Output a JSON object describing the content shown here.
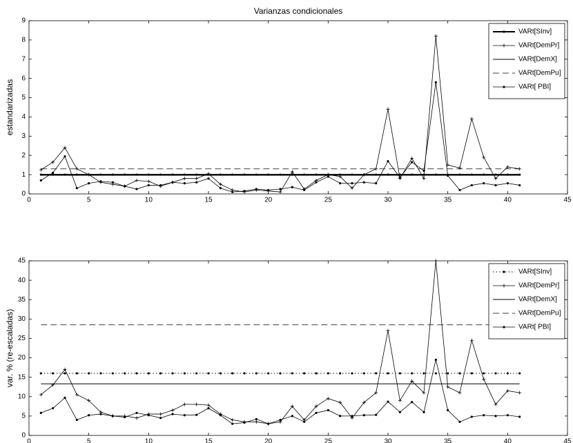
{
  "chart_data": [
    {
      "type": "line",
      "title": "Varianzas condicionales",
      "ylabel": "estandarizadas",
      "x": [
        1,
        2,
        3,
        4,
        5,
        6,
        7,
        8,
        9,
        10,
        11,
        12,
        13,
        14,
        15,
        16,
        17,
        18,
        19,
        20,
        21,
        22,
        23,
        24,
        25,
        26,
        27,
        28,
        29,
        30,
        31,
        32,
        33,
        34,
        35,
        36,
        37,
        38,
        39,
        40,
        41
      ],
      "xlim": [
        0,
        45
      ],
      "xticks": [
        0,
        5,
        10,
        15,
        20,
        25,
        30,
        35,
        40,
        45
      ],
      "ylim": [
        0,
        9
      ],
      "yticks": [
        0,
        1,
        2,
        3,
        4,
        5,
        6,
        7,
        8,
        9
      ],
      "legend": "upper right",
      "series": [
        {
          "name": "VARt[SInv]",
          "color": "#000000",
          "line": "solid",
          "marker": "dot",
          "width": 2,
          "values": [
            1,
            1,
            1,
            1,
            1,
            1,
            1,
            1,
            1,
            1,
            1,
            1,
            1,
            1,
            1,
            1,
            1,
            1,
            1,
            1,
            1,
            1,
            1,
            1,
            1,
            1,
            1,
            1,
            1,
            1,
            1,
            1,
            1,
            1,
            1,
            1,
            1,
            1,
            1,
            1,
            1
          ]
        },
        {
          "name": "VARt[DemPr]",
          "color": "#000000",
          "line": "solid",
          "marker": "plus",
          "width": 0.8,
          "values": [
            1.25,
            1.65,
            2.4,
            1.3,
            1.0,
            0.6,
            0.5,
            0.4,
            0.7,
            0.65,
            0.4,
            0.6,
            0.8,
            0.8,
            1.05,
            0.5,
            0.2,
            0.1,
            0.2,
            0.15,
            0.1,
            1.15,
            0.25,
            0.7,
            1.0,
            0.9,
            0.3,
            1.0,
            1.3,
            4.4,
            0.8,
            1.85,
            0.8,
            8.2,
            1.5,
            1.35,
            3.9,
            1.9,
            0.8,
            1.4,
            1.3
          ]
        },
        {
          "name": "VARt[DemX]",
          "color": "#000000",
          "line": "solid",
          "marker": "none",
          "width": 1,
          "values": [
            0.97,
            0.97,
            0.97,
            0.97,
            0.97,
            0.97,
            0.97,
            0.97,
            0.97,
            0.97,
            0.97,
            0.97,
            0.97,
            0.97,
            0.97,
            0.97,
            0.97,
            0.97,
            0.97,
            0.97,
            0.97,
            0.97,
            0.97,
            0.97,
            0.97,
            0.97,
            0.97,
            0.97,
            0.97,
            0.97,
            0.97,
            0.97,
            0.97,
            0.97,
            0.97,
            0.97,
            0.97,
            0.97,
            0.97,
            0.97,
            0.97
          ]
        },
        {
          "name": "VARt[DemPu]",
          "color": "#000000",
          "line": "dashed",
          "marker": "none",
          "width": 0.8,
          "values": [
            1.3,
            1.3,
            1.3,
            1.3,
            1.3,
            1.3,
            1.3,
            1.3,
            1.3,
            1.3,
            1.3,
            1.3,
            1.3,
            1.3,
            1.3,
            1.3,
            1.3,
            1.3,
            1.3,
            1.3,
            1.3,
            1.3,
            1.3,
            1.3,
            1.3,
            1.3,
            1.3,
            1.3,
            1.3,
            1.3,
            1.3,
            1.3,
            1.3,
            1.3,
            1.3,
            1.3,
            1.3,
            1.3,
            1.3,
            1.3,
            1.3
          ]
        },
        {
          "name": "VARt[ PBI]",
          "color": "#000000",
          "line": "solid",
          "marker": "dot",
          "width": 0.8,
          "values": [
            0.7,
            1.1,
            1.95,
            0.3,
            0.55,
            0.65,
            0.6,
            0.4,
            0.25,
            0.45,
            0.45,
            0.6,
            0.55,
            0.6,
            0.8,
            0.3,
            0.1,
            0.15,
            0.25,
            0.2,
            0.25,
            0.35,
            0.2,
            0.6,
            0.9,
            0.55,
            0.55,
            0.6,
            0.55,
            1.7,
            0.85,
            1.65,
            1.2,
            5.8,
            0.95,
            0.2,
            0.45,
            0.55,
            0.45,
            0.55,
            0.45
          ]
        }
      ]
    },
    {
      "type": "line",
      "ylabel": "var. % (re-escaladas)",
      "x": [
        1,
        2,
        3,
        4,
        5,
        6,
        7,
        8,
        9,
        10,
        11,
        12,
        13,
        14,
        15,
        16,
        17,
        18,
        19,
        20,
        21,
        22,
        23,
        24,
        25,
        26,
        27,
        28,
        29,
        30,
        31,
        32,
        33,
        34,
        35,
        36,
        37,
        38,
        39,
        40,
        41
      ],
      "xlim": [
        0,
        45
      ],
      "xticks": [
        0,
        5,
        10,
        15,
        20,
        25,
        30,
        35,
        40,
        45
      ],
      "ylim": [
        0,
        45
      ],
      "yticks": [
        0,
        5,
        10,
        15,
        20,
        25,
        30,
        35,
        40,
        45
      ],
      "legend": "upper right",
      "series": [
        {
          "name": "VARt[SInv]",
          "color": "#000000",
          "line": "dotted",
          "marker": "dot",
          "width": 1,
          "values": [
            16,
            16,
            16,
            16,
            16,
            16,
            16,
            16,
            16,
            16,
            16,
            16,
            16,
            16,
            16,
            16,
            16,
            16,
            16,
            16,
            16,
            16,
            16,
            16,
            16,
            16,
            16,
            16,
            16,
            16,
            16,
            16,
            16,
            16,
            16,
            16,
            16,
            16,
            16,
            16,
            16
          ]
        },
        {
          "name": "VARt[DemPr]",
          "color": "#000000",
          "line": "solid",
          "marker": "plus",
          "width": 0.8,
          "values": [
            10.5,
            13,
            17,
            10.5,
            9,
            6,
            5,
            5,
            4.5,
            5.5,
            5.5,
            6.5,
            8,
            8,
            7.8,
            5.5,
            4,
            3.5,
            3.5,
            3,
            3.5,
            7.5,
            4,
            7.5,
            9.5,
            8.5,
            4.5,
            8.5,
            11,
            27,
            9,
            14,
            11,
            45,
            12.5,
            11,
            24.5,
            14.5,
            8,
            11.5,
            11
          ]
        },
        {
          "name": "VARt[DemX]",
          "color": "#000000",
          "line": "solid",
          "marker": "none",
          "width": 1,
          "values": [
            13.3,
            13.3,
            13.3,
            13.3,
            13.3,
            13.3,
            13.3,
            13.3,
            13.3,
            13.3,
            13.3,
            13.3,
            13.3,
            13.3,
            13.3,
            13.3,
            13.3,
            13.3,
            13.3,
            13.3,
            13.3,
            13.3,
            13.3,
            13.3,
            13.3,
            13.3,
            13.3,
            13.3,
            13.3,
            13.3,
            13.3,
            13.3,
            13.3,
            13.3,
            13.3,
            13.3,
            13.3,
            13.3,
            13.3,
            13.3,
            13.3
          ]
        },
        {
          "name": "VARt[DemPu]",
          "color": "#000000",
          "line": "dashed",
          "marker": "none",
          "width": 0.8,
          "values": [
            28.5,
            28.5,
            28.5,
            28.5,
            28.5,
            28.5,
            28.5,
            28.5,
            28.5,
            28.5,
            28.5,
            28.5,
            28.5,
            28.5,
            28.5,
            28.5,
            28.5,
            28.5,
            28.5,
            28.5,
            28.5,
            28.5,
            28.5,
            28.5,
            28.5,
            28.5,
            28.5,
            28.5,
            28.5,
            28.5,
            28.5,
            28.5,
            28.5,
            28.5,
            28.5,
            28.5,
            28.5,
            28.5,
            28.5,
            28.5,
            28.5
          ]
        },
        {
          "name": "VARt[ PBI]",
          "color": "#000000",
          "line": "solid",
          "marker": "dot",
          "width": 0.8,
          "values": [
            5.8,
            7,
            9.7,
            4,
            5.2,
            5.5,
            5,
            4.7,
            5.8,
            5.2,
            4.5,
            5.5,
            5.2,
            5.3,
            7,
            5.2,
            3,
            3.3,
            4.2,
            3,
            4,
            5,
            3.5,
            5.8,
            6.5,
            5,
            5,
            5.2,
            5.3,
            8.7,
            6,
            8.6,
            6,
            19.5,
            6.5,
            3.5,
            4.8,
            5.2,
            5,
            5.2,
            4.8
          ]
        }
      ]
    }
  ]
}
